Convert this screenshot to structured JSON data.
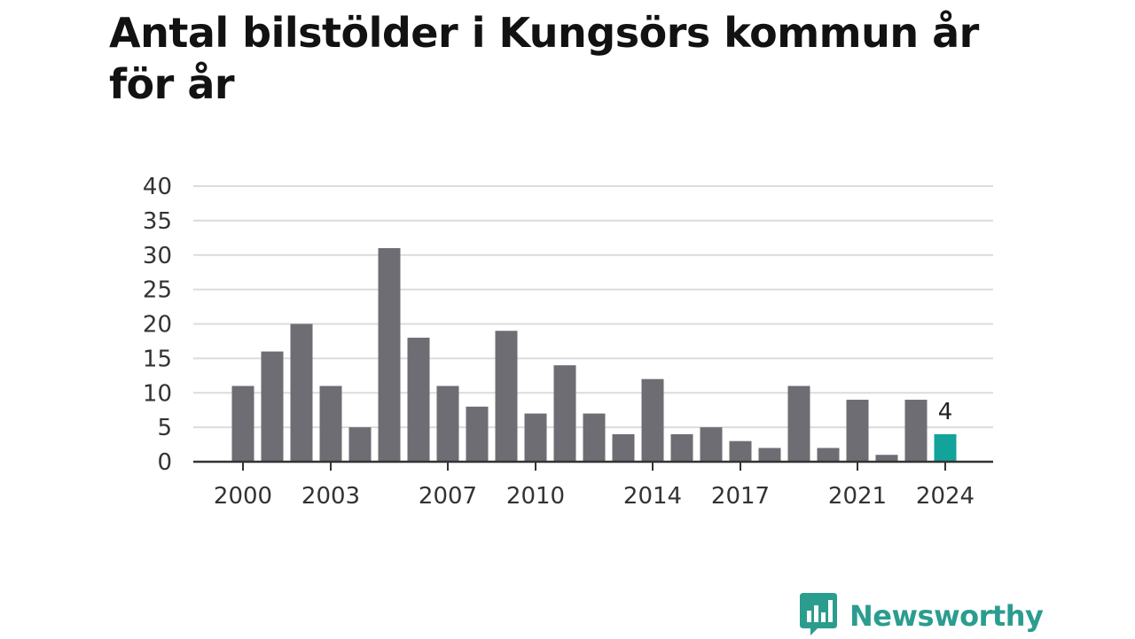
{
  "chart_data": {
    "type": "bar",
    "title": "Antal bilstölder i Kungsörs kommun år för år",
    "xlabel": "",
    "ylabel": "",
    "categories": [
      "2000",
      "2001",
      "2002",
      "2003",
      "2004",
      "2005",
      "2006",
      "2007",
      "2008",
      "2009",
      "2010",
      "2011",
      "2012",
      "2013",
      "2014",
      "2015",
      "2016",
      "2017",
      "2018",
      "2019",
      "2020",
      "2021",
      "2022",
      "2023",
      "2024"
    ],
    "values": [
      11,
      16,
      20,
      11,
      5,
      31,
      18,
      11,
      8,
      19,
      7,
      14,
      7,
      4,
      12,
      4,
      5,
      3,
      2,
      11,
      2,
      9,
      1,
      9,
      4
    ],
    "x_tick_labels": [
      "2000",
      "2003",
      "2007",
      "2010",
      "2014",
      "2017",
      "2021",
      "2024"
    ],
    "y_ticks": [
      "0",
      "5",
      "10",
      "15",
      "20",
      "25",
      "30",
      "35",
      "40"
    ],
    "ylim": [
      0,
      40
    ],
    "grid": true,
    "highlight": {
      "category": "2024",
      "label": "4"
    },
    "colors": {
      "bar": "#6e6d73",
      "highlight": "#12a39a",
      "grid": "#dcdcdc",
      "axis": "#333333"
    }
  },
  "brand": {
    "name": "Newsworthy",
    "icon": "newsworthy-chart-bubble-icon",
    "color": "#2a9d8f"
  }
}
